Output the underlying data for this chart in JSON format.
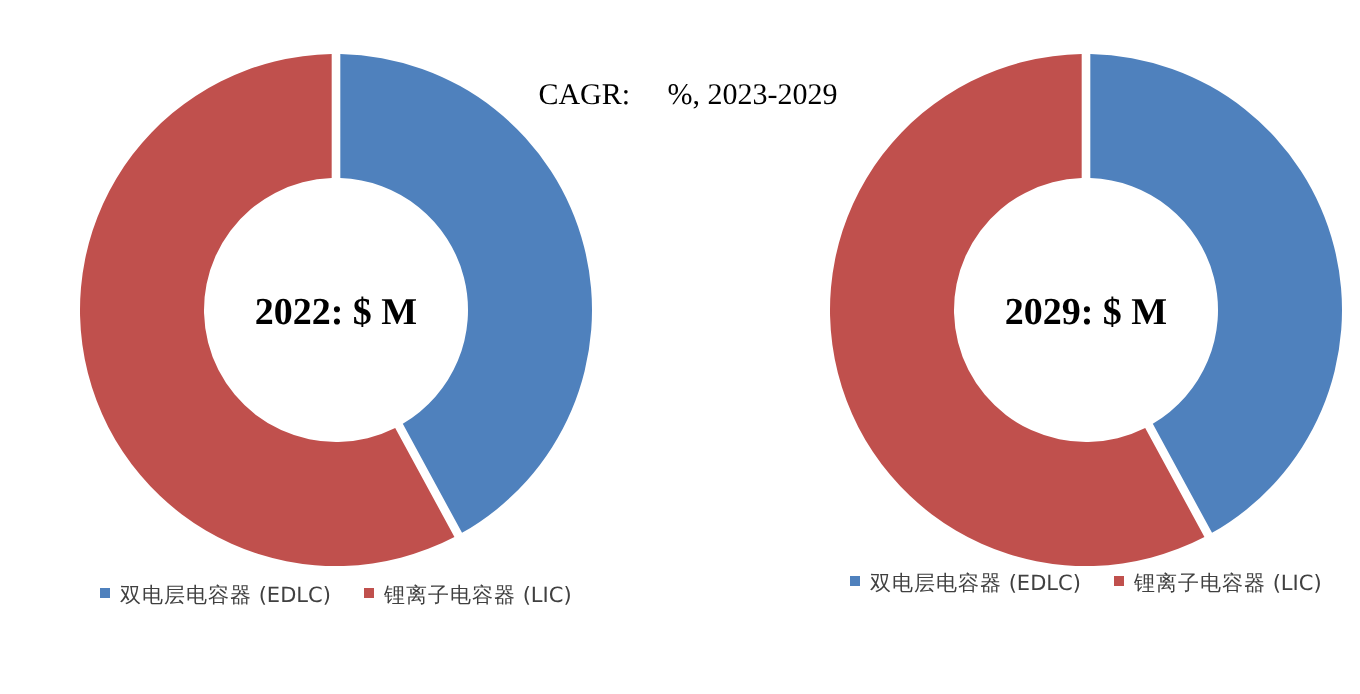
{
  "chart_data": [
    {
      "type": "donut",
      "title": "2022: $ M",
      "categories": [
        "双电层电容器 (EDLC)",
        "锂离子电容器 (LIC)"
      ],
      "values": [
        42,
        58
      ],
      "colors": [
        "#4f81bd",
        "#c0504d"
      ],
      "legend": "bottom",
      "annotations": [
        "CAGR:     %, 2023-2029"
      ]
    },
    {
      "type": "donut",
      "title": "2029: $ M",
      "categories": [
        "双电层电容器 (EDLC)",
        "锂离子电容器 (LIC)"
      ],
      "values": [
        42,
        58
      ],
      "colors": [
        "#4f81bd",
        "#c0504d"
      ],
      "legend": "bottom"
    }
  ]
}
